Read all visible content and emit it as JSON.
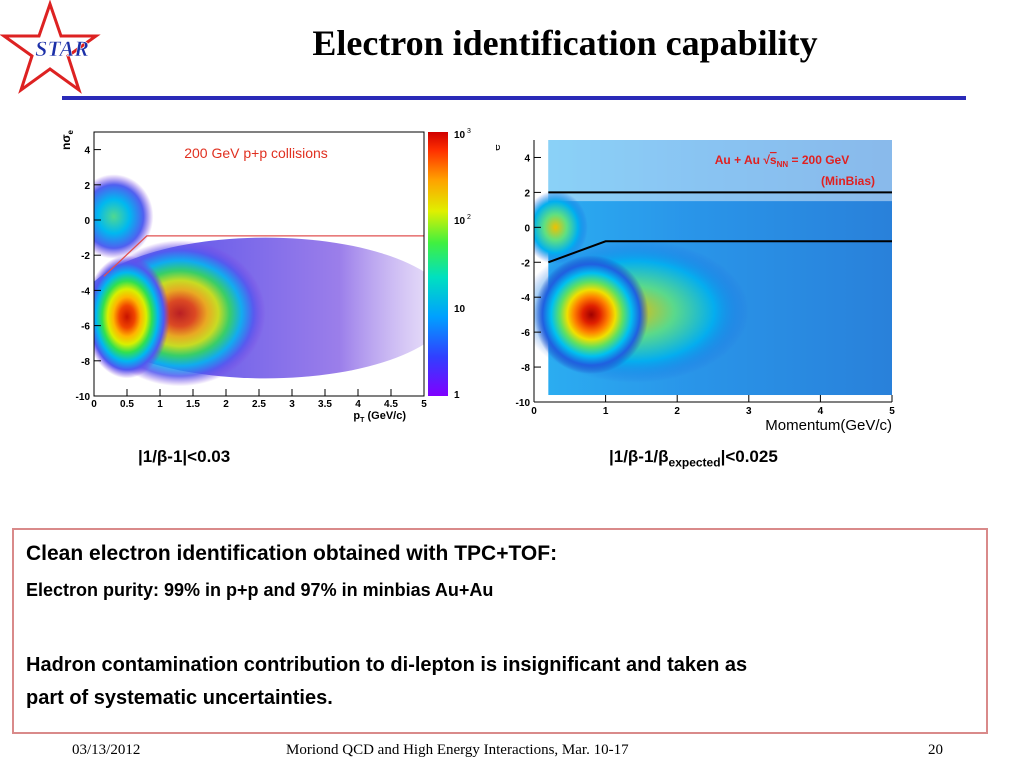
{
  "slide": {
    "title": "Electron identification capability",
    "logo_text": "STAR",
    "page_number": "20"
  },
  "plot_left": {
    "annotation": "200 GeV p+p collisions",
    "ylabel_main": "nσ",
    "ylabel_sub": "e",
    "xlabel_main": "p",
    "xlabel_sub": "T",
    "xlabel_unit": " (GeV/c)",
    "cut_label": "|1/β-1|<0.03",
    "colorbar_labels": [
      "10",
      "10",
      "10",
      "1"
    ],
    "colorbar_sup": [
      "3",
      "2"
    ]
  },
  "plot_right": {
    "annotation_line1_prefix": "Au + Au ",
    "annotation_line1_s": "s",
    "annotation_line1_sub": "NN",
    "annotation_line1_suffix": " = 200 GeV",
    "annotation_line2": "(MinBias)",
    "ylabel_main": "nσ",
    "ylabel_sub": "e",
    "xlabel": "Momentum(GeV/c)",
    "cut_prefix": "|1/β-1/β",
    "cut_sub": "expected",
    "cut_suffix": "|<0.025"
  },
  "chart_data": [
    {
      "type": "heatmap",
      "title": "",
      "xlabel": "p_T (GeV/c)",
      "ylabel": "nσ_e",
      "xlim": [
        0,
        5
      ],
      "ylim": [
        -10,
        5
      ],
      "x_ticks": [
        "0",
        "0.5",
        "1",
        "1.5",
        "2",
        "2.5",
        "3",
        "3.5",
        "4",
        "4.5",
        "5"
      ],
      "y_ticks": [
        "4",
        "2",
        "0",
        "-2",
        "-4",
        "-6",
        "-8",
        "-10"
      ],
      "colorbar_log": true,
      "colorbar_range": [
        1,
        1000
      ],
      "annotations": [
        "200 GeV p+p collisions"
      ],
      "cut_line": [
        [
          0.15,
          -3.2
        ],
        [
          0.8,
          -0.9
        ],
        [
          5,
          -0.9
        ]
      ],
      "cut_color": "#e05050",
      "blobs": [
        {
          "x": 0.5,
          "y": -5.5,
          "peak": "dense"
        },
        {
          "x": 0.3,
          "y": 0.2,
          "peak": "electron band"
        }
      ]
    },
    {
      "type": "heatmap",
      "title": "",
      "xlabel": "Momentum(GeV/c)",
      "ylabel": "nσ_e",
      "xlim": [
        0,
        5
      ],
      "ylim": [
        -10,
        5
      ],
      "x_ticks": [
        "0",
        "1",
        "2",
        "3",
        "4",
        "5"
      ],
      "y_ticks": [
        "4",
        "2",
        "0",
        "-2",
        "-4",
        "-6",
        "-8",
        "-10"
      ],
      "annotations": [
        "Au + Au √sNN = 200 GeV",
        "(MinBias)"
      ],
      "cut_lines": [
        [
          [
            0.2,
            2.0
          ],
          [
            5,
            2.0
          ]
        ],
        [
          [
            0.2,
            -2.0
          ],
          [
            1.0,
            -0.8
          ],
          [
            5,
            -0.8
          ]
        ]
      ],
      "cut_color": "#000000",
      "blobs": [
        {
          "x": 0.6,
          "y": -5.0,
          "peak": "dense"
        },
        {
          "x": 0.3,
          "y": 0.0,
          "peak": "electron band"
        }
      ]
    }
  ],
  "textbox": {
    "heading": "Clean electron identification obtained with TPC+TOF:",
    "line2": "Electron purity: 99% in p+p and 97% in minbias Au+Au",
    "line3": "Hadron contamination contribution to di-lepton is insignificant and taken as",
    "line4": "part of systematic uncertainties."
  },
  "footer": {
    "date": "03/13/2012",
    "event": "Moriond QCD and High Energy Interactions, Mar. 10-17"
  }
}
